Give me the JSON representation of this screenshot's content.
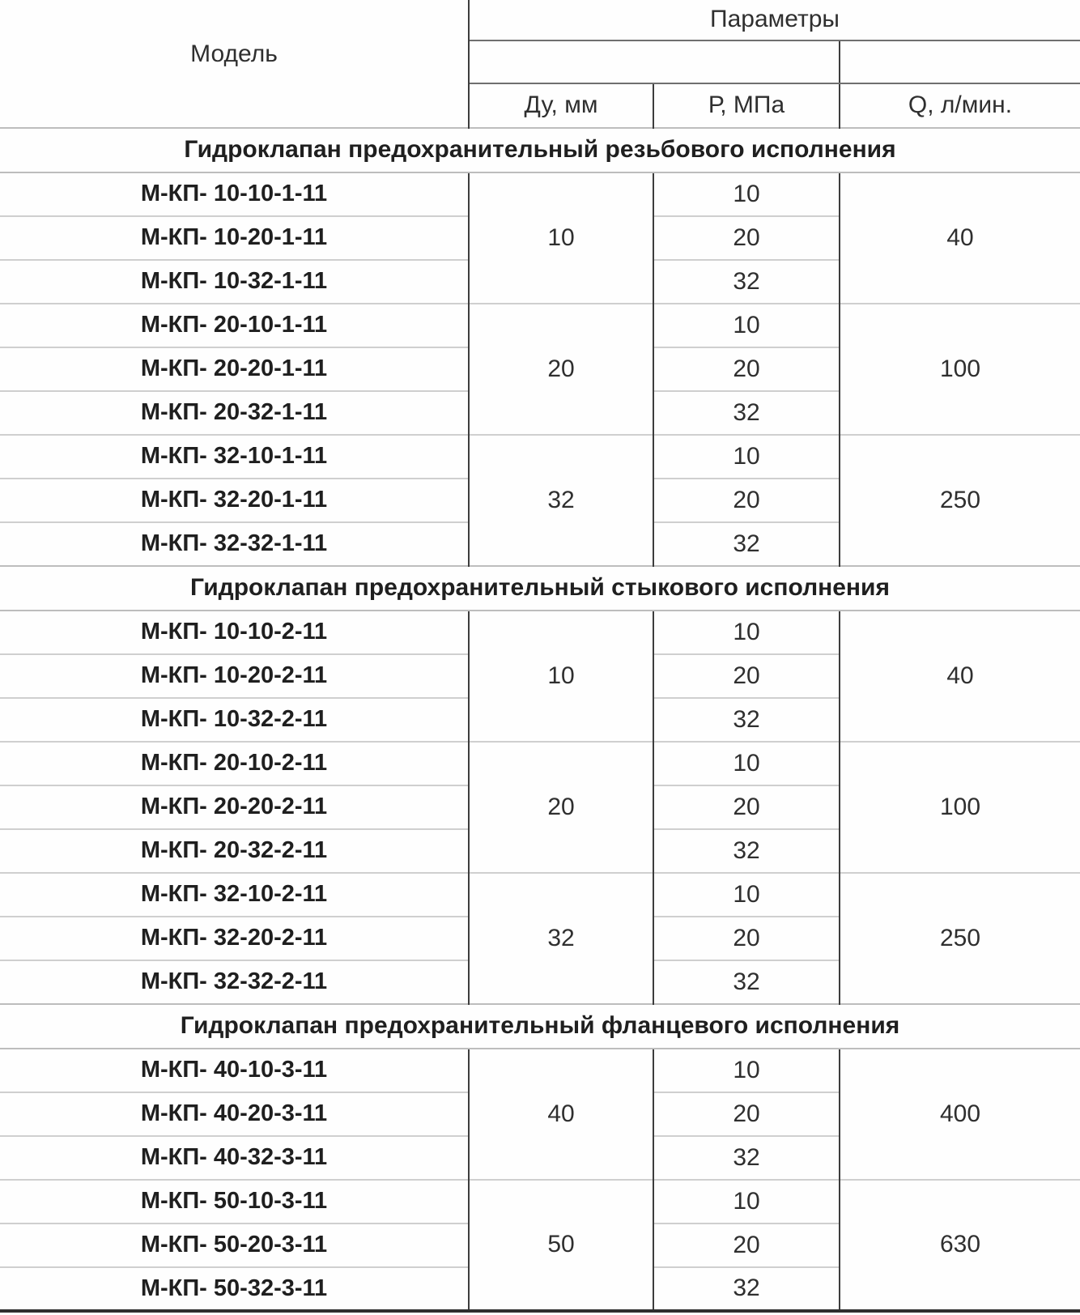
{
  "header": {
    "model_label": "Модель",
    "params_label": "Параметры",
    "du_label": "Ду, мм",
    "p_label": "Р, МПа",
    "q_label": "Q, л/мин."
  },
  "sections": [
    {
      "title": "Гидроклапан предохранительный резьбового исполнения",
      "groups": [
        {
          "du": "10",
          "q": "40",
          "rows": [
            {
              "model": "М-КП- 10-10-1-11",
              "p": "10"
            },
            {
              "model": "М-КП- 10-20-1-11",
              "p": "20"
            },
            {
              "model": "М-КП- 10-32-1-11",
              "p": "32"
            }
          ]
        },
        {
          "du": "20",
          "q": "100",
          "rows": [
            {
              "model": "М-КП- 20-10-1-11",
              "p": "10"
            },
            {
              "model": "М-КП- 20-20-1-11",
              "p": "20"
            },
            {
              "model": "М-КП- 20-32-1-11",
              "p": "32"
            }
          ]
        },
        {
          "du": "32",
          "q": "250",
          "rows": [
            {
              "model": "М-КП- 32-10-1-11",
              "p": "10"
            },
            {
              "model": "М-КП- 32-20-1-11",
              "p": "20"
            },
            {
              "model": "М-КП- 32-32-1-11",
              "p": "32"
            }
          ]
        }
      ]
    },
    {
      "title": "Гидроклапан предохранительный стыкового исполнения",
      "groups": [
        {
          "du": "10",
          "q": "40",
          "rows": [
            {
              "model": "М-КП- 10-10-2-11",
              "p": "10"
            },
            {
              "model": "М-КП- 10-20-2-11",
              "p": "20"
            },
            {
              "model": "М-КП- 10-32-2-11",
              "p": "32"
            }
          ]
        },
        {
          "du": "20",
          "q": "100",
          "rows": [
            {
              "model": "М-КП- 20-10-2-11",
              "p": "10"
            },
            {
              "model": "М-КП- 20-20-2-11",
              "p": "20"
            },
            {
              "model": "М-КП- 20-32-2-11",
              "p": "32"
            }
          ]
        },
        {
          "du": "32",
          "q": "250",
          "rows": [
            {
              "model": "М-КП- 32-10-2-11",
              "p": "10"
            },
            {
              "model": "М-КП- 32-20-2-11",
              "p": "20"
            },
            {
              "model": "М-КП- 32-32-2-11",
              "p": "32"
            }
          ]
        }
      ]
    },
    {
      "title": "Гидроклапан предохранительный фланцевого исполнения",
      "groups": [
        {
          "du": "40",
          "q": "400",
          "rows": [
            {
              "model": "М-КП- 40-10-3-11",
              "p": "10"
            },
            {
              "model": "М-КП- 40-20-3-11",
              "p": "20"
            },
            {
              "model": "М-КП- 40-32-3-11",
              "p": "32"
            }
          ]
        },
        {
          "du": "50",
          "q": "630",
          "rows": [
            {
              "model": "М-КП- 50-10-3-11",
              "p": "10"
            },
            {
              "model": "М-КП- 50-20-3-11",
              "p": "20"
            },
            {
              "model": "М-КП- 50-32-3-11",
              "p": "32"
            }
          ]
        }
      ]
    }
  ]
}
